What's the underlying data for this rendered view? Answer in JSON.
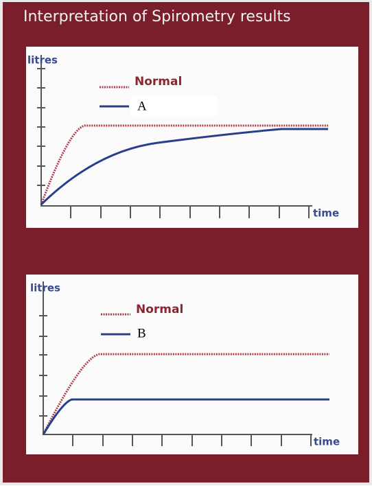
{
  "header": {
    "title": "Interpretation of Spirometry results"
  },
  "panels": [
    {
      "y_label": "litres",
      "x_label": "time",
      "legend": [
        "Normal",
        "A"
      ]
    },
    {
      "y_label": "litres",
      "x_label": "time",
      "legend": [
        "Normal",
        "B"
      ]
    }
  ]
}
